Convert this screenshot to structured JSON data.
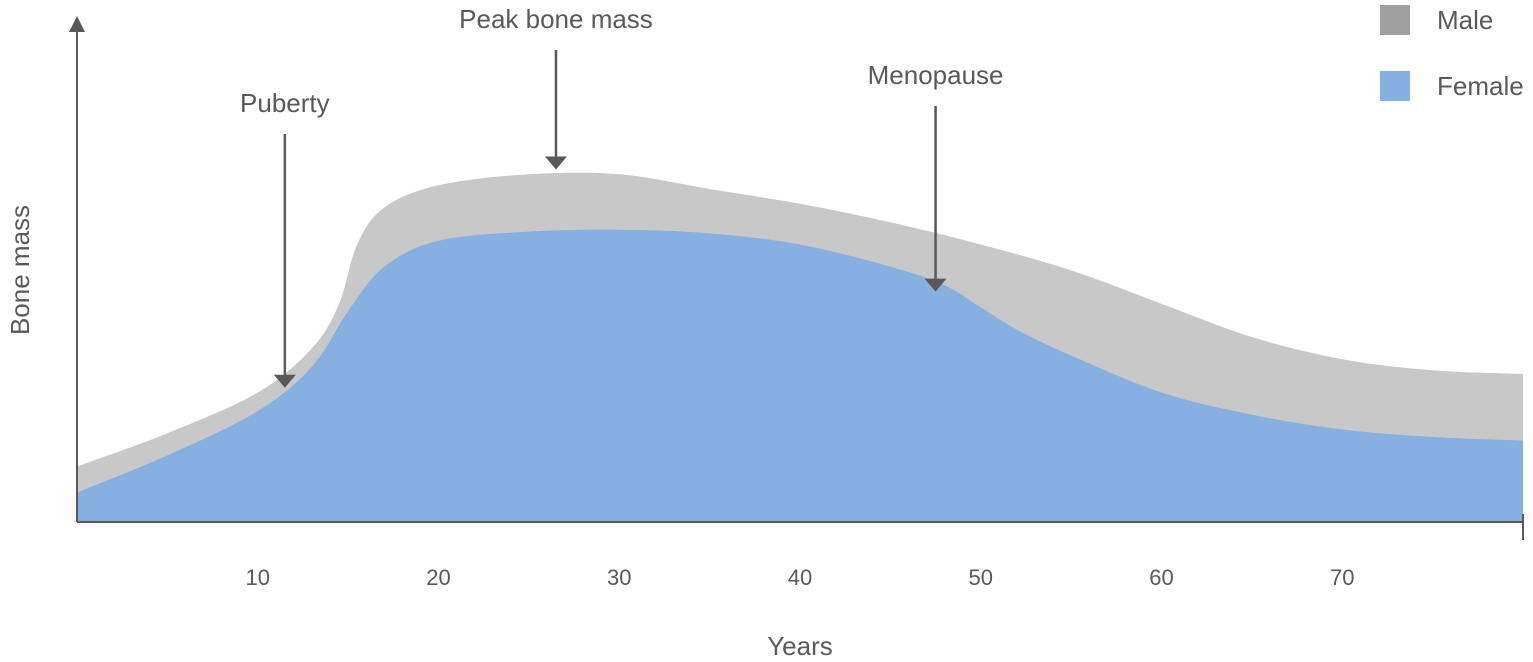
{
  "chart_data": {
    "type": "area",
    "xlabel": "Years",
    "ylabel": "Bone mass",
    "xlim": [
      0,
      80
    ],
    "ylim": [
      0,
      100
    ],
    "x_ticks": [
      10,
      20,
      30,
      40,
      50,
      60,
      70
    ],
    "grid": false,
    "legend_position": "top-right",
    "series": [
      {
        "name": "Male",
        "color": "#c8c8c8",
        "legend_color": "#a0a0a0",
        "x": [
          0,
          5,
          10,
          13,
          14.5,
          15.5,
          17,
          20,
          25,
          30,
          35,
          40,
          45,
          50,
          55,
          60,
          65,
          70,
          75,
          80
        ],
        "values": [
          15,
          24,
          35,
          47,
          59,
          75,
          85,
          91,
          94,
          94,
          90,
          86,
          81,
          75,
          68,
          59,
          50,
          44,
          41,
          40
        ]
      },
      {
        "name": "Female",
        "color": "#85b0df",
        "legend_color": "#85b0df",
        "x": [
          0,
          5,
          10,
          13,
          15,
          17,
          20,
          25,
          30,
          35,
          40,
          45,
          48,
          50,
          52,
          55,
          60,
          65,
          70,
          75,
          80
        ],
        "values": [
          8,
          18,
          30,
          42,
          57,
          69,
          76,
          78.5,
          79,
          78,
          75,
          69,
          64,
          58,
          52,
          45,
          35,
          29,
          25,
          23,
          22
        ]
      }
    ],
    "annotations": [
      {
        "label": "Puberty",
        "x": 11.5,
        "y": 36
      },
      {
        "label": "Peak bone mass",
        "x": 26.5,
        "y": 95
      },
      {
        "label": "Menopause",
        "x": 47.5,
        "y": 62
      }
    ]
  }
}
